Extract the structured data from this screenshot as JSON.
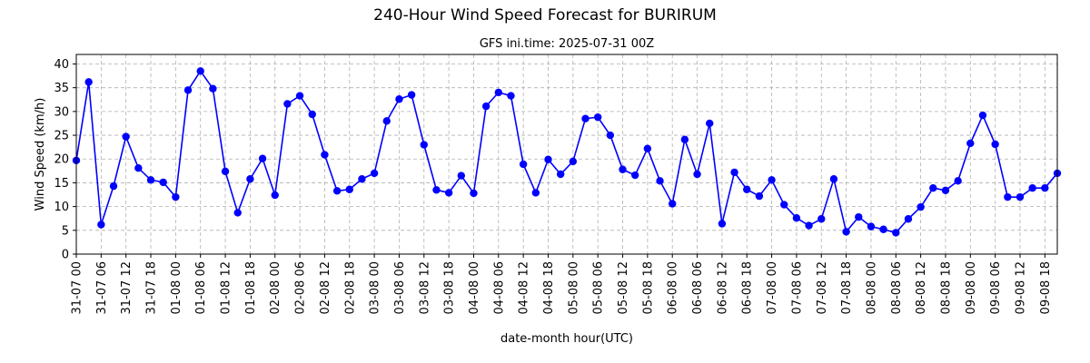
{
  "figure": {
    "title": "240-Hour Wind Speed Forecast for BURIRUM",
    "subtitle": "GFS ini.time: 2025-07-31 00Z"
  },
  "chart_data": {
    "type": "line",
    "title": "240-Hour Wind Speed Forecast for BURIRUM",
    "subtitle": "GFS ini.time: 2025-07-31 00Z",
    "xlabel": "date-month hour(UTC)",
    "ylabel": "Wind Speed (km/h)",
    "ylim": [
      0,
      42
    ],
    "yticks": [
      0,
      5,
      10,
      15,
      20,
      25,
      30,
      35,
      40
    ],
    "x_interval_hours": 3,
    "xtick_labels": [
      "31-07 00",
      "31-07 06",
      "31-07 12",
      "31-07 18",
      "01-08 00",
      "01-08 06",
      "01-08 12",
      "01-08 18",
      "02-08 00",
      "02-08 06",
      "02-08 12",
      "02-08 18",
      "03-08 00",
      "03-08 06",
      "03-08 12",
      "03-08 18",
      "04-08 00",
      "04-08 06",
      "04-08 12",
      "04-08 18",
      "05-08 00",
      "05-08 06",
      "05-08 12",
      "05-08 18",
      "06-08 00",
      "06-08 06",
      "06-08 12",
      "06-08 18",
      "07-08 00",
      "07-08 06",
      "07-08 12",
      "07-08 18",
      "08-08 00",
      "08-08 06",
      "08-08 12",
      "08-08 18",
      "09-08 00",
      "09-08 06",
      "09-08 12",
      "09-08 18"
    ],
    "grid": true,
    "color": "#0000ff",
    "series": [
      {
        "values": [
          19.7,
          36.2,
          6.2,
          14.3,
          24.7,
          18.1,
          15.6,
          15.1,
          12.0,
          34.5,
          38.5,
          34.8,
          17.4,
          8.7,
          15.8,
          20.1,
          12.4,
          31.6,
          33.3,
          29.4,
          20.9,
          13.3,
          13.6,
          15.8,
          17.0,
          28.0,
          32.6,
          33.5,
          23.0,
          13.5,
          12.9,
          16.5,
          12.8,
          31.1,
          34.0,
          33.3,
          18.9,
          12.9,
          19.9,
          16.8,
          19.5,
          28.5,
          28.8,
          25.0,
          17.8,
          16.6,
          22.2,
          15.4,
          10.6,
          24.1,
          16.8,
          27.5,
          6.4,
          17.2,
          13.6,
          12.2,
          15.6,
          10.4,
          7.6,
          6.0,
          7.4,
          15.8,
          4.7,
          7.8,
          5.8,
          5.2,
          4.5,
          7.4,
          9.9,
          13.9,
          13.4,
          15.4,
          23.3,
          29.2,
          23.1,
          12.0,
          12.0,
          13.9,
          13.9,
          17.0
        ]
      }
    ]
  }
}
